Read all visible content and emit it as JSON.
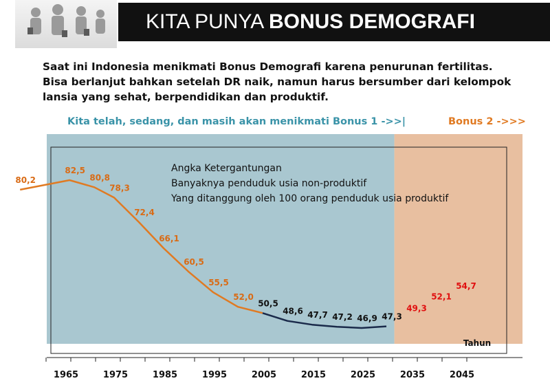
{
  "header": {
    "title_light": "KITA PUNYA ",
    "title_bold": "BONUS DEMOGRAFI",
    "logo_icon": "people-group-icon"
  },
  "intro": {
    "line1": "Saat ini Indonesia menikmati Bonus Demografi karena penurunan fertilitas.",
    "line2": "Bisa berlanjut bahkan setelah DR naik, namun harus bersumber dari kelompok",
    "line3": "lansia yang sehat, berpendidikan dan produktif."
  },
  "bonus1_label": "Kita telah, sedang, dan masih akan menikmati Bonus 1 ->>|",
  "bonus2_label": "Bonus 2 ->>>",
  "colors": {
    "bonus1_region": "#a9c7d0",
    "bonus2_region": "#e8bfa0",
    "orange_line": "#e07a22",
    "dark_line": "#1a2a4a",
    "red_labels": "#e01010",
    "bonus1_text": "#3a93a8"
  },
  "chart_data": {
    "type": "line",
    "title": "Angka Ketergantungan",
    "subtitle_lines": [
      "Banyaknya penduduk usia non-produktif",
      "Yang ditanggung oleh 100 orang penduduk usia produktif"
    ],
    "xlabel": "Tahun",
    "x_ticks": [
      "1965",
      "1975",
      "1985",
      "1995",
      "2005",
      "2015",
      "2025",
      "2035",
      "2045"
    ],
    "x": [
      1961,
      1971,
      1976,
      1980,
      1985,
      1990,
      1995,
      2000,
      2005,
      2010,
      2015,
      2020,
      2025,
      2030,
      2035,
      2040,
      2045,
      2050
    ],
    "labels": [
      "80,2",
      "82,5",
      "80,8",
      "78,3",
      "72,4",
      "66,1",
      "60,5",
      "55,5",
      "52,0",
      "50,5",
      "48,6",
      "47,7",
      "47,2",
      "46,9",
      "47,3",
      "49,3",
      "52,1",
      "54,7"
    ],
    "values": [
      80.2,
      82.5,
      80.8,
      78.3,
      72.4,
      66.1,
      60.5,
      55.5,
      52.0,
      50.5,
      48.6,
      47.7,
      47.2,
      46.9,
      47.3,
      49.3,
      52.1,
      54.7
    ],
    "segments": [
      {
        "name": "past",
        "color": "orange",
        "from_x": 1961,
        "to_x": 2010
      },
      {
        "name": "projection",
        "color": "dark",
        "from_x": 2010,
        "to_x": 2035
      }
    ],
    "regions": [
      {
        "name": "Bonus 1",
        "from_x": 1961,
        "to_x": 2033
      },
      {
        "name": "Bonus 2",
        "from_x": 2033,
        "to_x": 2053
      }
    ],
    "xlim": [
      1961,
      2053
    ],
    "ylim": [
      45,
      85
    ]
  }
}
